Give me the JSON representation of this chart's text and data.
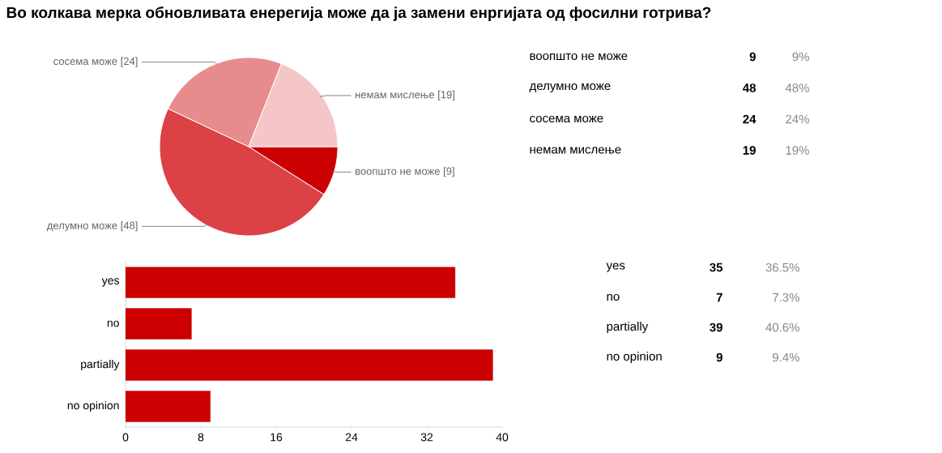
{
  "chart_data": [
    {
      "type": "pie",
      "title": "Во колкава мерка обновливата енерегија може да ја замени енргијата од фосилни готрива?",
      "categories": [
        "воопшто не може",
        "делумно може",
        "сосема може",
        "немам мислење"
      ],
      "values": [
        9,
        48,
        24,
        19
      ],
      "colors": [
        "#cc0000",
        "#dc4146",
        "#e88b8c",
        "#f5c6c7"
      ],
      "value_labels": [
        "[9]",
        "[48]",
        "[24]",
        "[19]"
      ]
    },
    {
      "type": "other",
      "categories": [
        "воопшто не може",
        "делумно може",
        "сосема може",
        "немам мислење"
      ],
      "annotations": [
        "9",
        "9%",
        "48",
        "48%",
        "24",
        "24%",
        "19",
        "19%"
      ]
    },
    {
      "type": "bar",
      "orientation": "horizontal",
      "categories": [
        "yes",
        "no",
        "partially",
        "no opinion"
      ],
      "values": [
        35,
        7,
        39,
        9
      ],
      "color": "#cc0000",
      "xlim": [
        0,
        40
      ],
      "xticks": [
        0,
        8,
        16,
        24,
        32,
        40
      ]
    },
    {
      "type": "other",
      "categories": [
        "yes",
        "no",
        "partially",
        "no opinion"
      ],
      "annotations": [
        "35",
        "36.5%",
        "7",
        "7.3%",
        "39",
        "40.6%",
        "9",
        "9.4%"
      ]
    }
  ]
}
